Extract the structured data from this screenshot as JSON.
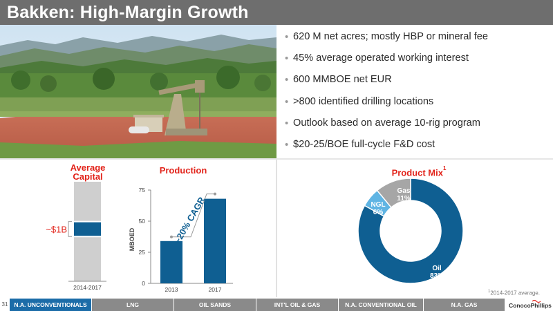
{
  "slide": {
    "title": "Bakken: High-Margin Growth",
    "page_number": "31"
  },
  "bullets": [
    "620 M net acres; mostly HBP or mineral fee",
    "45% average operated working interest",
    "600 MMBOE net EUR",
    ">800 identified drilling locations",
    "Outlook based on average 10-rig program",
    "$20-25/BOE full-cycle F&D cost"
  ],
  "photo": {
    "subject": "oil-pumpjack-landscape"
  },
  "colors": {
    "accent_red": "#e2231a",
    "brand_blue": "#0f5f92",
    "light_blue": "#5fb4e3",
    "gray": "#a6a6a6"
  },
  "chart_data": [
    {
      "type": "bar",
      "title_line1": "Average",
      "title_line2": "Capital",
      "categories": [
        "2014-2017"
      ],
      "band": [
        4.5,
        6
      ],
      "band_label": "~$1B"
    },
    {
      "type": "bar",
      "title": "Production",
      "ylabel": "MBOED",
      "categories": [
        "2013",
        "2017"
      ],
      "values": [
        34,
        68
      ],
      "ylim": [
        0,
        75
      ],
      "yticks": [
        "0",
        "25",
        "50",
        "75"
      ],
      "annotation": "~20% CAGR"
    },
    {
      "type": "pie",
      "title": "Product Mix",
      "title_superscript": "1",
      "slices": [
        {
          "label": "Oil",
          "value": 83,
          "value_label": "83%",
          "color": "#0f5f92"
        },
        {
          "label": "NGL",
          "value": 6,
          "value_label": "6%",
          "color": "#5fb4e3"
        },
        {
          "label": "Gas",
          "value": 11,
          "value_label": "11%",
          "color": "#a6a6a6"
        }
      ]
    }
  ],
  "footnote": {
    "marker": "1",
    "text": "2014-2017 average."
  },
  "footer_tabs": [
    {
      "label": "N.A. UNCONVENTIONALS",
      "active": true
    },
    {
      "label": "LNG",
      "active": false
    },
    {
      "label": "OIL SANDS",
      "active": false
    },
    {
      "label": "INT'L OIL & GAS",
      "active": false
    },
    {
      "label": "N.A. CONVENTIONAL OIL",
      "active": false
    },
    {
      "label": "N.A. GAS",
      "active": false
    }
  ],
  "logo": {
    "text": "ConocoPhillips"
  }
}
